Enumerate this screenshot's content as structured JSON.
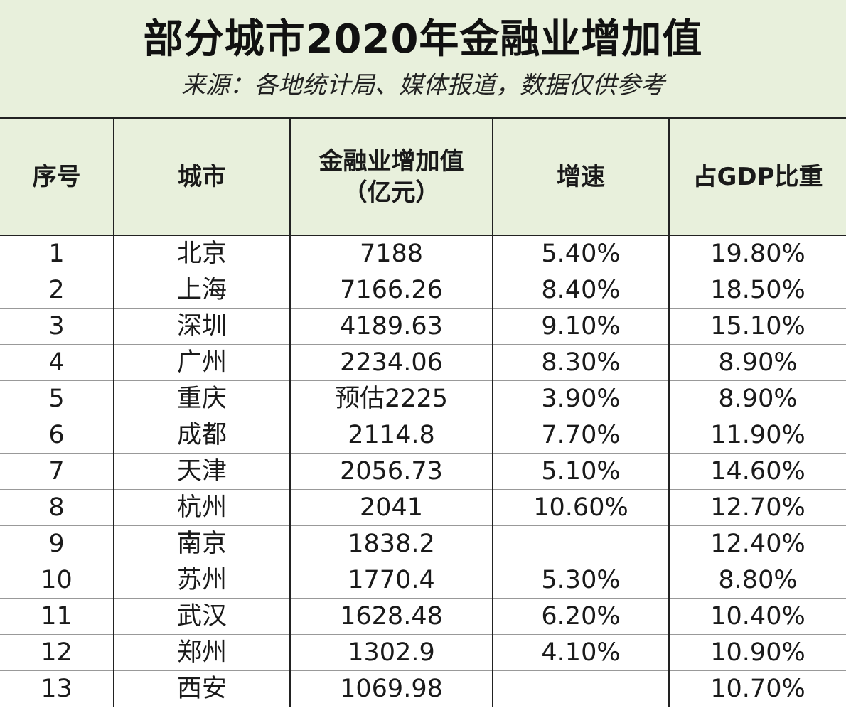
{
  "title": "部分城市2020年金融业增加值",
  "subtitle": "来源：各地统计局、媒体报道，数据仅供参考",
  "columns": {
    "index": "序号",
    "city": "城市",
    "value_line1": "金融业增加值",
    "value_line2": "（亿元）",
    "growth": "增速",
    "share": "占GDP比重"
  },
  "rows": [
    {
      "index": "1",
      "city": "北京",
      "value": "7188",
      "growth": "5.40%",
      "share": "19.80%"
    },
    {
      "index": "2",
      "city": "上海",
      "value": "7166.26",
      "growth": "8.40%",
      "share": "18.50%"
    },
    {
      "index": "3",
      "city": "深圳",
      "value": "4189.63",
      "growth": "9.10%",
      "share": "15.10%"
    },
    {
      "index": "4",
      "city": "广州",
      "value": "2234.06",
      "growth": "8.30%",
      "share": "8.90%"
    },
    {
      "index": "5",
      "city": "重庆",
      "value": "预估2225",
      "growth": "3.90%",
      "share": "8.90%"
    },
    {
      "index": "6",
      "city": "成都",
      "value": "2114.8",
      "growth": "7.70%",
      "share": "11.90%"
    },
    {
      "index": "7",
      "city": "天津",
      "value": "2056.73",
      "growth": "5.10%",
      "share": "14.60%"
    },
    {
      "index": "8",
      "city": "杭州",
      "value": "2041",
      "growth": "10.60%",
      "share": "12.70%"
    },
    {
      "index": "9",
      "city": "南京",
      "value": "1838.2",
      "growth": "",
      "share": "12.40%"
    },
    {
      "index": "10",
      "city": "苏州",
      "value": "1770.4",
      "growth": "5.30%",
      "share": "8.80%"
    },
    {
      "index": "11",
      "city": "武汉",
      "value": "1628.48",
      "growth": "6.20%",
      "share": "10.40%"
    },
    {
      "index": "12",
      "city": "郑州",
      "value": "1302.9",
      "growth": "4.10%",
      "share": "10.90%"
    },
    {
      "index": "13",
      "city": "西安",
      "value": "1069.98",
      "growth": "",
      "share": "10.70%"
    }
  ],
  "colors": {
    "header_bg": "#e8f0dc",
    "border": "#222222"
  }
}
